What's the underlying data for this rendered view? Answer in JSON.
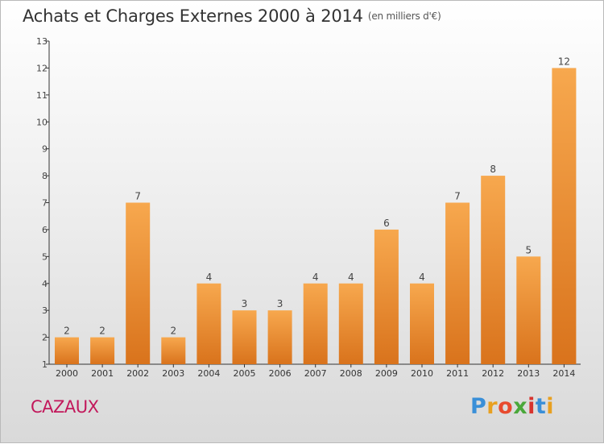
{
  "title": "Achats et Charges Externes 2000 à 2014",
  "subtitle": "(en milliers d'€)",
  "commune": "CAZAUX",
  "logo": {
    "letters": [
      "P",
      "r",
      "o",
      "x",
      "i",
      "t",
      "i"
    ],
    "colors": [
      "#3a8fd8",
      "#e8a020",
      "#e84a2e",
      "#4aa83a",
      "#d8342e",
      "#3a8fd8",
      "#e8a020"
    ]
  },
  "colors": {
    "bar_top": "#f7a84e",
    "bar_bottom": "#d9731c",
    "axis": "#333333",
    "grid": "#e0e0e0"
  },
  "chart_data": {
    "type": "bar",
    "categories": [
      "2000",
      "2001",
      "2002",
      "2003",
      "2004",
      "2005",
      "2006",
      "2007",
      "2008",
      "2009",
      "2010",
      "2011",
      "2012",
      "2013",
      "2014"
    ],
    "values": [
      2,
      2,
      7,
      2,
      4,
      3,
      3,
      4,
      4,
      6,
      4,
      7,
      8,
      5,
      12
    ],
    "data_labels": [
      "2",
      "2",
      "7",
      "2",
      "4",
      "3",
      "3",
      "4",
      "4",
      "6",
      "4",
      "7",
      "8",
      "5",
      "12"
    ],
    "y_ticks": [
      "1",
      "2",
      "3",
      "4",
      "5",
      "6",
      "7",
      "8",
      "9",
      "10",
      "11",
      "12",
      "13"
    ],
    "ylim": [
      1,
      13
    ],
    "grid": false,
    "legend": "none"
  }
}
